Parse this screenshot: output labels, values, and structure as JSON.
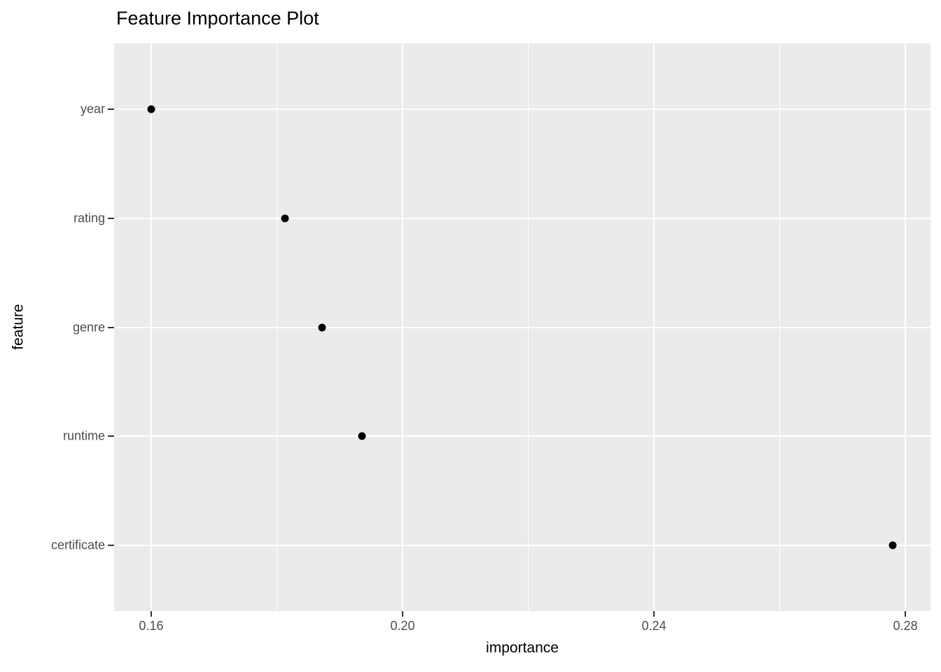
{
  "chart_data": {
    "type": "scatter",
    "title": "Feature Importance Plot",
    "xlabel": "importance",
    "ylabel": "feature",
    "categories": [
      "year",
      "rating",
      "genre",
      "runtime",
      "certificate"
    ],
    "series": [
      {
        "name": "importance",
        "values": [
          0.16,
          0.1813,
          0.1872,
          0.1935,
          0.278
        ]
      }
    ],
    "x_major_ticks": [
      0.16,
      0.2,
      0.24,
      0.28
    ],
    "x_major_tick_labels": [
      "0.16",
      "0.20",
      "0.24",
      "0.28"
    ],
    "x_minor_ticks": [
      0.18,
      0.22,
      0.26
    ],
    "xlim": [
      0.1541,
      0.284
    ],
    "grid": "white major gridlines on x and y, white minor gridlines on x only",
    "legend": "none",
    "panel_theme": "ggplot2 grey",
    "colors": {
      "panel_background": "#EBEBEB",
      "gridline": "#FFFFFF",
      "point": "#000000",
      "axis_text": "#4D4D4D",
      "tick_mark": "#333333",
      "title_text": "#000000"
    }
  }
}
